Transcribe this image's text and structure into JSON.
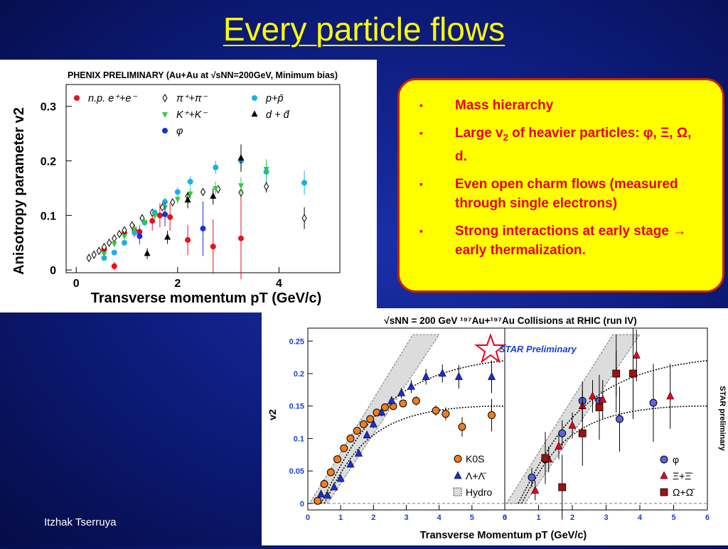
{
  "slide": {
    "title": "Every particle flows",
    "footer": "Itzhak Tserruya"
  },
  "callout": {
    "b1": "Mass hierarchy",
    "b2_pre": "Large v",
    "b2_sub": "2",
    "b2_post": " of heavier particles: φ, Ξ, Ω, d.",
    "b3": "Even open charm flows (measured through single electrons)",
    "b4": "Strong interactions at early stage → early thermalization.",
    "bullet": "▪"
  },
  "colors": {
    "title": "#ffff00",
    "callout_bg": "#ffff00",
    "callout_border": "#cc2200",
    "callout_text": "#e8001c"
  },
  "chart_data": [
    {
      "type": "scatter",
      "header": "PHENIX PRELIMINARY (Au+Au at √sNN=200GeV, Minimum bias)",
      "xlabel": "Transverse momentum pT (GeV/c)",
      "ylabel": "Anisotropy parameter v2",
      "xlim": [
        -0.2,
        5.2
      ],
      "ylim": [
        -0.005,
        0.34
      ],
      "xticks": [
        "0",
        "2",
        "4"
      ],
      "yticks": [
        "0",
        "0.1",
        "0.2",
        "0.3"
      ],
      "series": [
        {
          "name": "n.p. e⁺+e⁻",
          "color": "#e8101a",
          "marker": "circle",
          "points": [
            [
              0.55,
              0.038,
              0.008
            ],
            [
              0.75,
              0.007,
              0.008
            ],
            [
              0.95,
              0.068,
              0.01
            ],
            [
              1.15,
              0.072,
              0.012
            ],
            [
              1.25,
              0.07,
              0.012
            ],
            [
              1.5,
              0.09,
              0.018
            ],
            [
              1.65,
              0.1,
              0.022
            ],
            [
              1.85,
              0.097,
              0.025
            ],
            [
              2.2,
              0.055,
              0.028
            ],
            [
              2.7,
              0.043,
              0.05
            ],
            [
              3.25,
              0.058,
              0.075
            ]
          ]
        },
        {
          "name": "π⁺+π⁻",
          "color": "#000000",
          "marker": "diamond-open",
          "points": [
            [
              0.25,
              0.022,
              0.002
            ],
            [
              0.35,
              0.028,
              0.002
            ],
            [
              0.45,
              0.035,
              0.002
            ],
            [
              0.55,
              0.042,
              0.002
            ],
            [
              0.65,
              0.05,
              0.002
            ],
            [
              0.75,
              0.058,
              0.002
            ],
            [
              0.85,
              0.066,
              0.002
            ],
            [
              0.95,
              0.073,
              0.002
            ],
            [
              1.1,
              0.082,
              0.003
            ],
            [
              1.3,
              0.095,
              0.003
            ],
            [
              1.5,
              0.105,
              0.003
            ],
            [
              1.7,
              0.115,
              0.004
            ],
            [
              1.9,
              0.124,
              0.004
            ],
            [
              2.2,
              0.135,
              0.005
            ],
            [
              2.5,
              0.143,
              0.006
            ],
            [
              2.8,
              0.148,
              0.007
            ],
            [
              3.25,
              0.142,
              0.009
            ],
            [
              3.75,
              0.153,
              0.011
            ],
            [
              4.5,
              0.095,
              0.02
            ]
          ]
        },
        {
          "name": "p+p̄",
          "color": "#1ab0e8",
          "marker": "circle",
          "points": [
            [
              0.55,
              0.022,
              0.004
            ],
            [
              0.75,
              0.032,
              0.004
            ],
            [
              0.95,
              0.05,
              0.004
            ],
            [
              1.15,
              0.068,
              0.005
            ],
            [
              1.35,
              0.087,
              0.006
            ],
            [
              1.55,
              0.105,
              0.007
            ],
            [
              1.75,
              0.125,
              0.008
            ],
            [
              2.0,
              0.143,
              0.009
            ],
            [
              2.25,
              0.162,
              0.01
            ],
            [
              2.75,
              0.188,
              0.012
            ],
            [
              3.25,
              0.2,
              0.015
            ],
            [
              3.75,
              0.18,
              0.018
            ],
            [
              4.5,
              0.16,
              0.022
            ]
          ]
        },
        {
          "name": "K⁺+K⁻",
          "color": "#2ecc40",
          "marker": "triangle-down",
          "points": [
            [
              0.55,
              0.03,
              0.004
            ],
            [
              0.75,
              0.048,
              0.004
            ],
            [
              0.95,
              0.062,
              0.004
            ],
            [
              1.15,
              0.075,
              0.005
            ],
            [
              1.35,
              0.088,
              0.005
            ],
            [
              1.55,
              0.1,
              0.006
            ],
            [
              1.75,
              0.115,
              0.007
            ],
            [
              2.0,
              0.13,
              0.008
            ],
            [
              2.25,
              0.14,
              0.01
            ],
            [
              2.75,
              0.15,
              0.012
            ],
            [
              3.25,
              0.155,
              0.015
            ],
            [
              3.75,
              0.185,
              0.018
            ]
          ]
        },
        {
          "name": "d + d̄",
          "color": "#000000",
          "marker": "triangle",
          "points": [
            [
              1.4,
              0.03,
              0.01
            ],
            [
              1.8,
              0.06,
              0.012
            ],
            [
              2.2,
              0.128,
              0.015
            ],
            [
              2.7,
              0.135,
              0.015
            ],
            [
              3.25,
              0.205,
              0.025
            ]
          ]
        },
        {
          "name": "φ",
          "color": "#1830d8",
          "marker": "circle",
          "points": [
            [
              1.25,
              0.062,
              0.015
            ],
            [
              1.75,
              0.102,
              0.022
            ],
            [
              2.5,
              0.076,
              0.05
            ]
          ]
        }
      ]
    },
    {
      "type": "scatter",
      "header": "√sNN = 200 GeV ¹⁹⁷Au+¹⁹⁷Au Collisions at RHIC (run IV)",
      "watermark": "STAR Preliminary",
      "side_label": "STAR preliminary",
      "xlabel": "Transverse Momentum pT (GeV/c)",
      "ylabel": "v2",
      "xlim": [
        0,
        6
      ],
      "ylim": [
        -0.01,
        0.27
      ],
      "xticks": [
        "0",
        "1",
        "2",
        "3",
        "4",
        "5",
        "6"
      ],
      "yticks": [
        "0",
        "0.05",
        "0.1",
        "0.15",
        "0.2",
        "0.25"
      ],
      "panels": [
        {
          "name": "left",
          "series": [
            {
              "name": "K0S",
              "color": "#f07d1f",
              "marker": "circle",
              "points": [
                [
                  0.3,
                  0.004,
                  0.002
                ],
                [
                  0.5,
                  0.03,
                  0.003
                ],
                [
                  0.7,
                  0.048,
                  0.003
                ],
                [
                  0.9,
                  0.068,
                  0.003
                ],
                [
                  1.1,
                  0.085,
                  0.003
                ],
                [
                  1.3,
                  0.1,
                  0.004
                ],
                [
                  1.5,
                  0.112,
                  0.004
                ],
                [
                  1.7,
                  0.122,
                  0.004
                ],
                [
                  1.9,
                  0.13,
                  0.004
                ],
                [
                  2.1,
                  0.14,
                  0.005
                ],
                [
                  2.35,
                  0.148,
                  0.005
                ],
                [
                  2.6,
                  0.15,
                  0.006
                ],
                [
                  2.9,
                  0.154,
                  0.006
                ],
                [
                  3.3,
                  0.158,
                  0.007
                ],
                [
                  3.9,
                  0.143,
                  0.008
                ],
                [
                  4.2,
                  0.138,
                  0.01
                ],
                [
                  4.7,
                  0.118,
                  0.015
                ],
                [
                  5.6,
                  0.136,
                  0.025
                ]
              ]
            },
            {
              "name": "Λ+Λ̄",
              "color": "#1530d8",
              "marker": "triangle",
              "points": [
                [
                  0.4,
                  0.014,
                  0.004
                ],
                [
                  0.6,
                  0.012,
                  0.004
                ],
                [
                  0.8,
                  0.025,
                  0.004
                ],
                [
                  1.0,
                  0.038,
                  0.004
                ],
                [
                  1.3,
                  0.06,
                  0.004
                ],
                [
                  1.55,
                  0.077,
                  0.005
                ],
                [
                  1.8,
                  0.105,
                  0.005
                ],
                [
                  2.0,
                  0.122,
                  0.006
                ],
                [
                  2.25,
                  0.14,
                  0.006
                ],
                [
                  2.55,
                  0.158,
                  0.007
                ],
                [
                  2.85,
                  0.17,
                  0.008
                ],
                [
                  3.15,
                  0.18,
                  0.01
                ],
                [
                  3.6,
                  0.195,
                  0.012
                ],
                [
                  4.1,
                  0.2,
                  0.014
                ],
                [
                  4.6,
                  0.195,
                  0.018
                ],
                [
                  5.6,
                  0.195,
                  0.025
                ]
              ]
            }
          ]
        },
        {
          "name": "right",
          "series": [
            {
              "name": "φ",
              "color": "#6060e0",
              "marker": "circle",
              "points": [
                [
                  0.8,
                  0.04,
                  0.015
                ],
                [
                  1.2,
                  0.068,
                  0.02
                ],
                [
                  1.7,
                  0.108,
                  0.02
                ],
                [
                  2.3,
                  0.158,
                  0.03
                ],
                [
                  2.8,
                  0.158,
                  0.04
                ],
                [
                  3.4,
                  0.13,
                  0.05
                ],
                [
                  4.4,
                  0.155,
                  0.06
                ]
              ]
            },
            {
              "name": "Ξ+Ξ̄",
              "color": "#e8001c",
              "marker": "triangle",
              "points": [
                [
                  0.9,
                  0.02,
                  0.015
                ],
                [
                  1.3,
                  0.068,
                  0.02
                ],
                [
                  1.6,
                  0.088,
                  0.02
                ],
                [
                  2.0,
                  0.12,
                  0.02
                ],
                [
                  2.3,
                  0.15,
                  0.025
                ],
                [
                  2.6,
                  0.165,
                  0.025
                ],
                [
                  2.9,
                  0.16,
                  0.03
                ],
                [
                  3.3,
                  0.2,
                  0.035
                ],
                [
                  3.9,
                  0.228,
                  0.04
                ],
                [
                  4.9,
                  0.165,
                  0.05
                ]
              ]
            },
            {
              "name": "Ω+Ω̄",
              "color": "#a01010",
              "marker": "square",
              "points": [
                [
                  1.2,
                  0.07,
                  0.04
                ],
                [
                  1.7,
                  0.025,
                  0.05
                ],
                [
                  2.3,
                  0.108,
                  0.05
                ],
                [
                  2.8,
                  0.148,
                  0.05
                ],
                [
                  3.3,
                  0.2,
                  0.06
                ],
                [
                  3.8,
                  0.2,
                  0.07
                ]
              ]
            }
          ]
        }
      ],
      "legend_hydro": "Hydro"
    }
  ]
}
